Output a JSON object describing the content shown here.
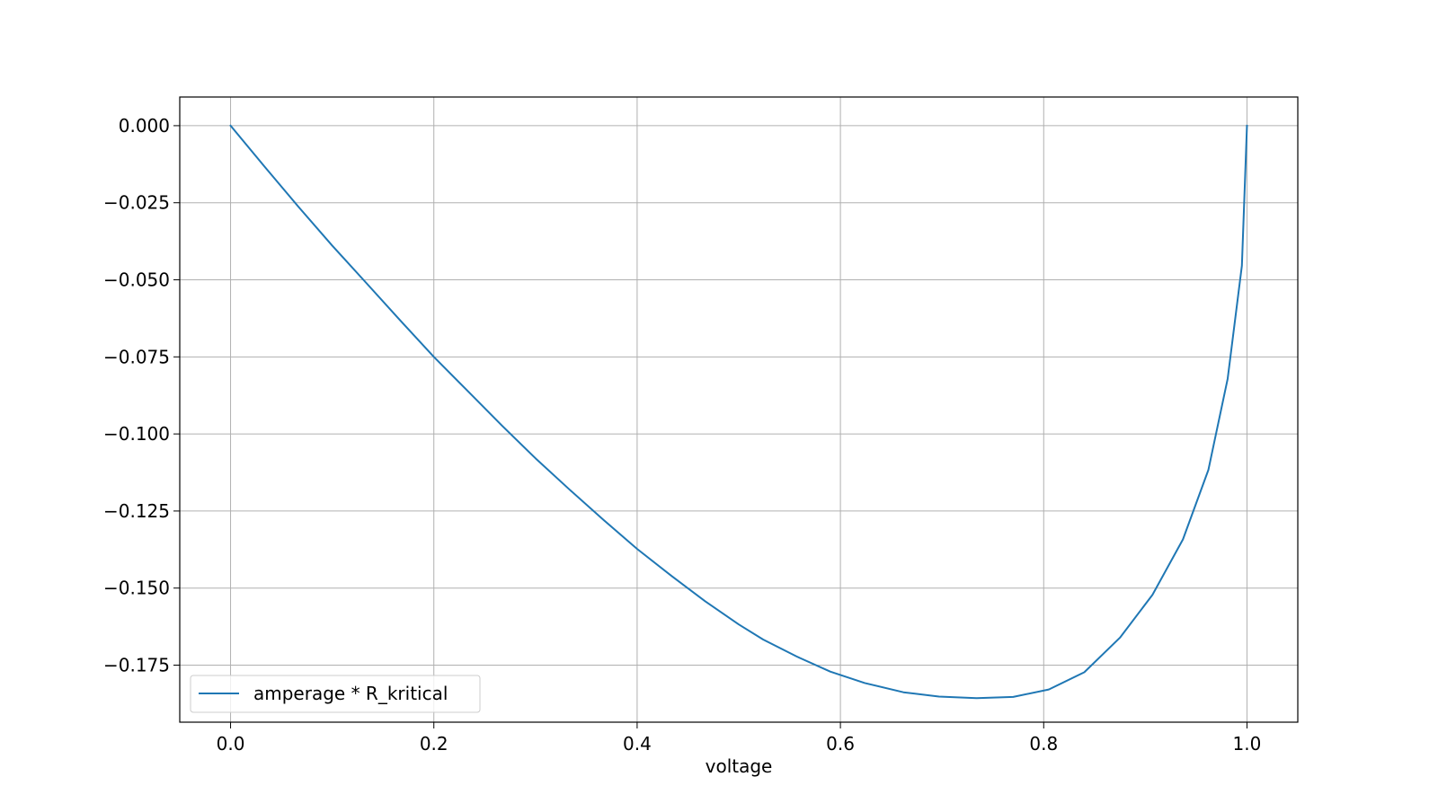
{
  "chart_data": {
    "type": "line",
    "title": "",
    "xlabel": "voltage",
    "ylabel": "",
    "xlim": [
      -0.05,
      1.05
    ],
    "ylim": [
      -0.1935,
      0.0093
    ],
    "grid": true,
    "legend_position": "lower-left",
    "x_ticks": [
      0.0,
      0.2,
      0.4,
      0.6,
      0.8,
      1.0
    ],
    "x_tick_labels": [
      "0.0",
      "0.2",
      "0.4",
      "0.6",
      "0.8",
      "1.0"
    ],
    "y_ticks": [
      0.0,
      -0.025,
      -0.05,
      -0.075,
      -0.1,
      -0.125,
      -0.15,
      -0.175
    ],
    "y_tick_labels": [
      "0.000",
      "−0.025",
      "−0.050",
      "−0.075",
      "−0.100",
      "−0.125",
      "−0.150",
      "−0.175"
    ],
    "series": [
      {
        "name": "amperage * R_kritical",
        "color": "#1f77b4",
        "x": [
          0.0,
          0.034,
          0.067,
          0.1,
          0.134,
          0.167,
          0.2,
          0.234,
          0.267,
          0.3,
          0.334,
          0.367,
          0.4,
          0.434,
          0.467,
          0.5,
          0.524,
          0.557,
          0.59,
          0.624,
          0.662,
          0.697,
          0.734,
          0.77,
          0.805,
          0.84,
          0.875,
          0.907,
          0.937,
          0.962,
          0.981,
          0.995,
          1.0
        ],
        "y": [
          0.0,
          -0.0135,
          -0.0264,
          -0.0389,
          -0.0512,
          -0.0632,
          -0.075,
          -0.0863,
          -0.0973,
          -0.1079,
          -0.1182,
          -0.1279,
          -0.1373,
          -0.1461,
          -0.1543,
          -0.1618,
          -0.1667,
          -0.1722,
          -0.1771,
          -0.1808,
          -0.1838,
          -0.1852,
          -0.1857,
          -0.1853,
          -0.1829,
          -0.1773,
          -0.1661,
          -0.1522,
          -0.1342,
          -0.1117,
          -0.0821,
          -0.0454,
          0.0
        ]
      }
    ]
  }
}
